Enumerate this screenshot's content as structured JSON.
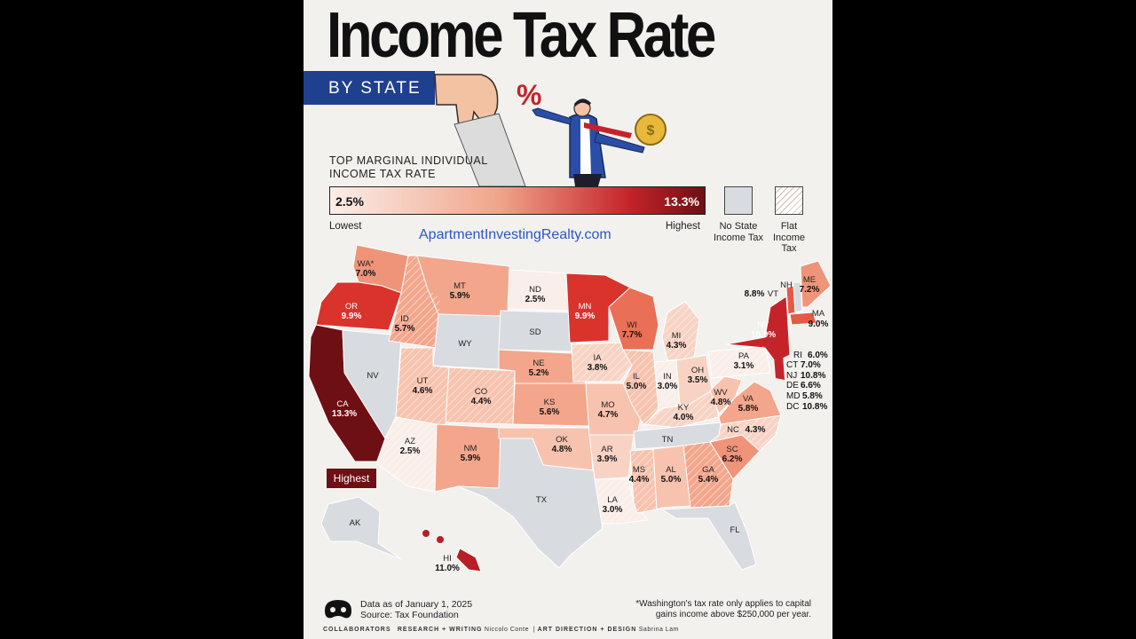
{
  "title": "Income Tax Rate",
  "subtitle": "BY STATE",
  "legend": {
    "heading_line1": "TOP MARGINAL INDIVIDUAL",
    "heading_line2": "INCOME TAX RATE",
    "min_value": "2.5%",
    "max_value": "13.3%",
    "min_label": "Lowest",
    "max_label": "Highest",
    "no_tax_line1": "No State",
    "no_tax_line2": "Income Tax",
    "flat_line1": "Flat",
    "flat_line2": "Income",
    "flat_line3": "Tax"
  },
  "watermark_url": "ApartmentInvestingRealty.com",
  "highlight_tag": "Highest",
  "colors": {
    "ribbon": "#1f3f8f",
    "accent_dark": "#6e0f14",
    "no_tax_gray": "#d8dbdf",
    "url_blue": "#2a56c6"
  },
  "states": {
    "WA": {
      "abbr": "WA*",
      "rate": "7.0%",
      "fill": "#ef9479"
    },
    "OR": {
      "abbr": "OR",
      "rate": "9.9%",
      "fill": "#d9332c"
    },
    "CA": {
      "abbr": "CA",
      "rate": "13.3%",
      "fill": "#6e0f14"
    },
    "NV": {
      "abbr": "NV",
      "fill": "#d8dbdf"
    },
    "ID": {
      "abbr": "ID",
      "rate": "5.7%",
      "fill": "#f3a68c"
    },
    "MT": {
      "abbr": "MT",
      "rate": "5.9%",
      "fill": "#f3a68c"
    },
    "WY": {
      "abbr": "WY",
      "fill": "#d8dbdf"
    },
    "UT": {
      "abbr": "UT",
      "rate": "4.6%",
      "fill": "#f7c3ae"
    },
    "AZ": {
      "abbr": "AZ",
      "rate": "2.5%",
      "fill": "#faeee8"
    },
    "CO": {
      "abbr": "CO",
      "rate": "4.4%",
      "fill": "#f7c3ae"
    },
    "NM": {
      "abbr": "NM",
      "rate": "5.9%",
      "fill": "#f3a68c"
    },
    "ND": {
      "abbr": "ND",
      "rate": "2.5%",
      "fill": "#faeee8"
    },
    "SD": {
      "abbr": "SD",
      "fill": "#d8dbdf"
    },
    "NE": {
      "abbr": "NE",
      "rate": "5.2%",
      "fill": "#f3a68c"
    },
    "KS": {
      "abbr": "KS",
      "rate": "5.6%",
      "fill": "#f3a68c"
    },
    "OK": {
      "abbr": "OK",
      "rate": "4.8%",
      "fill": "#f7c3ae"
    },
    "TX": {
      "abbr": "TX",
      "fill": "#d8dbdf"
    },
    "MN": {
      "abbr": "MN",
      "rate": "9.9%",
      "fill": "#d9332c"
    },
    "IA": {
      "abbr": "IA",
      "rate": "3.8%",
      "fill": "#f8d3c4"
    },
    "MO": {
      "abbr": "MO",
      "rate": "4.7%",
      "fill": "#f7c3ae"
    },
    "AR": {
      "abbr": "AR",
      "rate": "3.9%",
      "fill": "#f8d3c4"
    },
    "LA": {
      "abbr": "LA",
      "rate": "3.0%",
      "fill": "#faeee8"
    },
    "WI": {
      "abbr": "WI",
      "rate": "7.7%",
      "fill": "#e96f57"
    },
    "IL": {
      "abbr": "IL",
      "rate": "5.0%",
      "fill": "#f7c3ae"
    },
    "MI": {
      "abbr": "MI",
      "rate": "4.3%",
      "fill": "#f8d3c4"
    },
    "IN": {
      "abbr": "IN",
      "rate": "3.0%",
      "fill": "#faeee8"
    },
    "OH": {
      "abbr": "OH",
      "rate": "3.5%",
      "fill": "#f8d3c4"
    },
    "KY": {
      "abbr": "KY",
      "rate": "4.0%",
      "fill": "#f8d3c4"
    },
    "TN": {
      "abbr": "TN",
      "fill": "#d8dbdf"
    },
    "MS": {
      "abbr": "MS",
      "rate": "4.4%",
      "fill": "#f7c3ae"
    },
    "AL": {
      "abbr": "AL",
      "rate": "5.0%",
      "fill": "#f7c3ae"
    },
    "GA": {
      "abbr": "GA",
      "rate": "5.4%",
      "fill": "#f3a68c"
    },
    "FL": {
      "abbr": "FL",
      "fill": "#d8dbdf"
    },
    "SC": {
      "abbr": "SC",
      "rate": "6.2%",
      "fill": "#ef9479"
    },
    "NC": {
      "abbr": "NC",
      "rate": "4.3%",
      "fill": "#f8d3c4"
    },
    "VA": {
      "abbr": "VA",
      "rate": "5.8%",
      "fill": "#f3a68c"
    },
    "WV": {
      "abbr": "WV",
      "rate": "4.8%",
      "fill": "#f7c3ae"
    },
    "PA": {
      "abbr": "PA",
      "rate": "3.1%",
      "fill": "#faeee8"
    },
    "NY": {
      "abbr": "NY",
      "rate": "10.9%",
      "fill": "#c5232a"
    },
    "VT": {
      "abbr": "VT",
      "rate": "8.8%",
      "fill": "#e65a45"
    },
    "NH": {
      "abbr": "NH",
      "fill": "#d8dbdf"
    },
    "ME": {
      "abbr": "ME",
      "rate": "7.2%",
      "fill": "#ef9479"
    },
    "MA": {
      "abbr": "MA",
      "rate": "9.0%",
      "fill": "#e65a45"
    },
    "AK": {
      "abbr": "AK",
      "fill": "#d8dbdf"
    },
    "HI": {
      "abbr": "HI",
      "rate": "11.0%",
      "fill": "#b81e26"
    }
  },
  "northeast_list": [
    {
      "abbr": "RI",
      "rate": "6.0%"
    },
    {
      "abbr": "CT",
      "rate": "7.0%"
    },
    {
      "abbr": "NJ",
      "rate": "10.8%"
    },
    {
      "abbr": "DE",
      "rate": "6.6%"
    },
    {
      "abbr": "MD",
      "rate": "5.8%"
    },
    {
      "abbr": "DC",
      "rate": "10.8%"
    }
  ],
  "footer": {
    "data_line": "Data as of January 1, 2025",
    "source_line": "Source: Tax Foundation",
    "note_line1": "*Washington's tax rate only applies to capital",
    "note_line2": "gains income above $250,000 per year.",
    "brand": "COLLABORATORS",
    "research_label": "RESEARCH + WRITING",
    "research_name": "Niccolo Conte",
    "design_label": "ART DIRECTION + DESIGN",
    "design_name": "Sabrina Lam"
  }
}
